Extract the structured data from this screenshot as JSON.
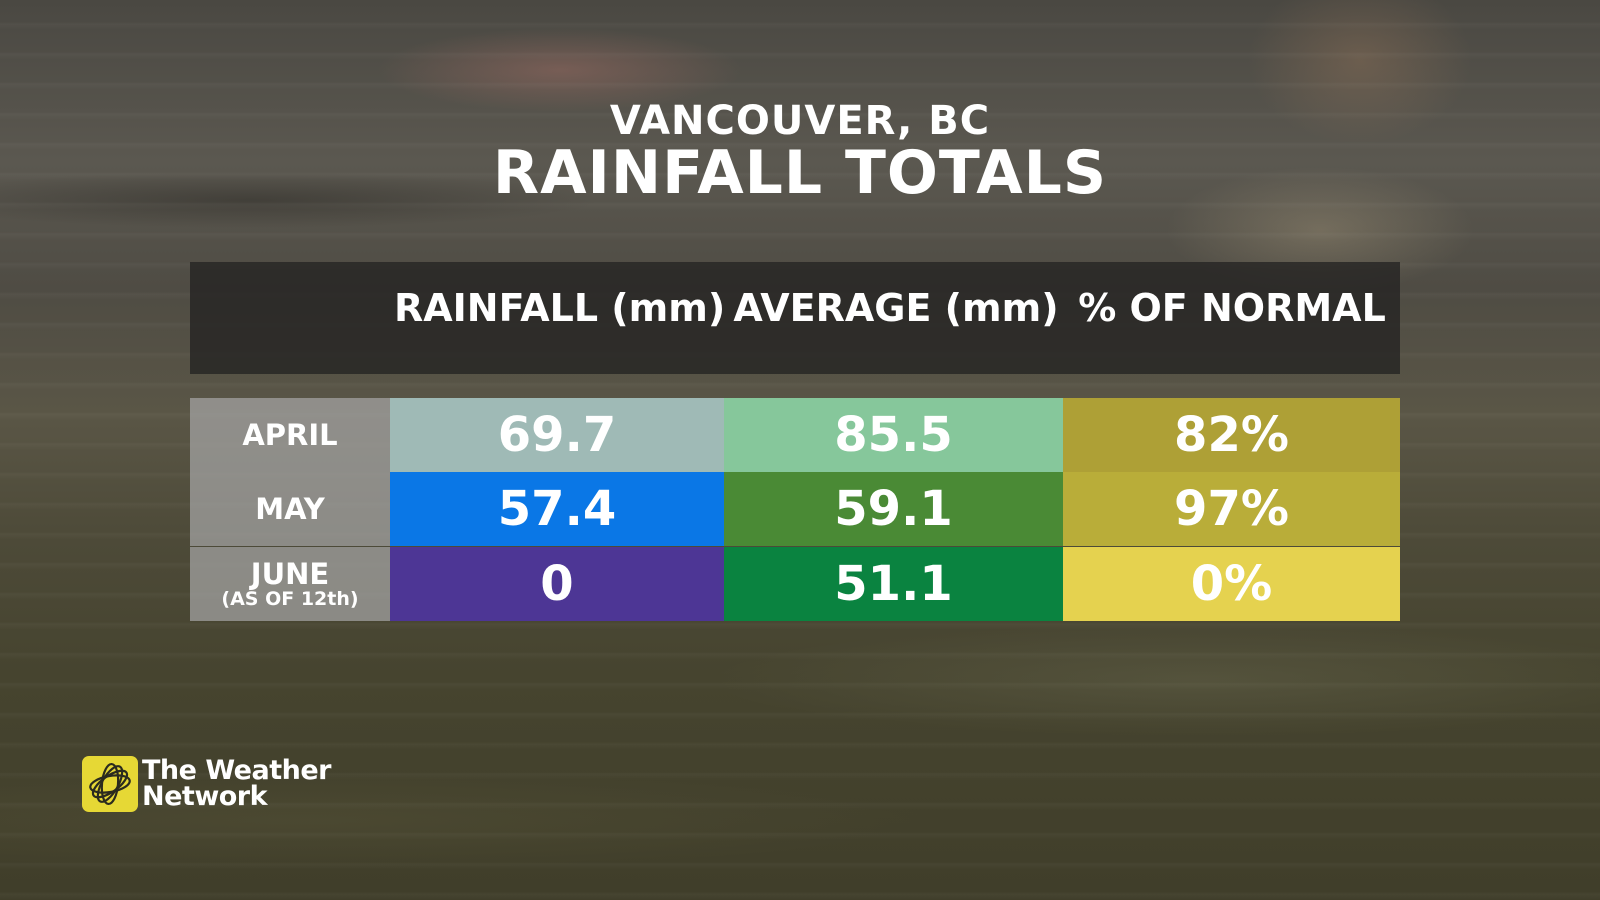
{
  "header": {
    "location": "VANCOUVER, BC",
    "title": "RAINFALL TOTALS"
  },
  "chart_data": {
    "type": "table",
    "columns": [
      "RAINFALL (mm)",
      "AVERAGE (mm)",
      "% OF NORMAL"
    ],
    "rows": [
      {
        "label": "APRIL",
        "note": "",
        "cells": [
          "69.7",
          "85.5",
          "82%"
        ],
        "colors": [
          "#9fbab6",
          "#86c79b",
          "#aea036"
        ]
      },
      {
        "label": "MAY",
        "note": "",
        "cells": [
          "57.4",
          "59.1",
          "97%"
        ],
        "colors": [
          "#0a77e6",
          "#4a8a35",
          "#b9ad39"
        ]
      },
      {
        "label": "JUNE",
        "note": "(AS OF 12th)",
        "cells": [
          "0",
          "51.1",
          "0%"
        ],
        "colors": [
          "#4d3695",
          "#0a8340",
          "#e5d24f"
        ]
      }
    ]
  },
  "logo": {
    "line1": "The Weather",
    "line2": "Network",
    "icon": "weather-network-swirl-icon",
    "color": "#e6d835"
  }
}
